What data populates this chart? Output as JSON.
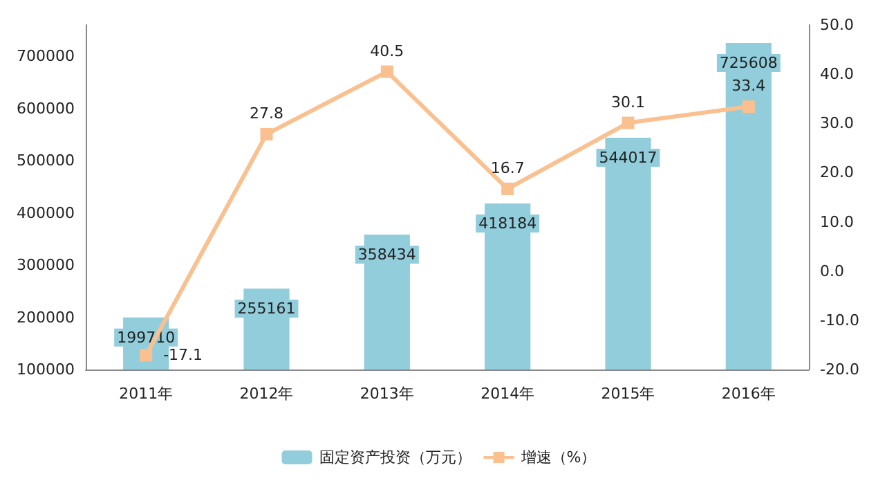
{
  "chart_data": {
    "type": "bar",
    "categories": [
      "2011年",
      "2012年",
      "2013年",
      "2014年",
      "2015年",
      "2016年"
    ],
    "series": [
      {
        "name": "固定资产投资（万元）",
        "color": "#92cddc",
        "values": [
          199710,
          255161,
          358434,
          418184,
          544017,
          725608
        ]
      },
      {
        "name": "增速（%）",
        "type": "line",
        "axis": "y2",
        "color": "#fac090",
        "values": [
          -17.1,
          27.8,
          40.5,
          16.7,
          30.1,
          33.4
        ]
      }
    ],
    "ylim": [
      100000,
      760000
    ],
    "yticks": [
      100000,
      200000,
      300000,
      400000,
      500000,
      600000,
      700000
    ],
    "y2lim": [
      -20,
      50
    ],
    "y2ticks": [
      {
        "value": -20,
        "label": "-20.0"
      },
      {
        "value": -10,
        "label": "-10.0"
      },
      {
        "value": 0,
        "label": "0.0"
      },
      {
        "value": 10,
        "label": "10.0"
      },
      {
        "value": 20,
        "label": "20.0"
      },
      {
        "value": 30,
        "label": "30.0"
      },
      {
        "value": 40,
        "label": "40.0"
      },
      {
        "value": 50,
        "label": "50.0"
      }
    ],
    "data_labels": true,
    "legend": "bottom",
    "marker": "square",
    "grid": false
  }
}
